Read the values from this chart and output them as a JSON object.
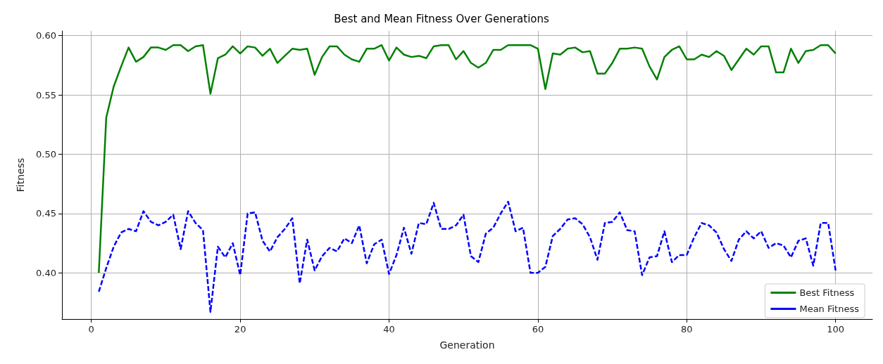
{
  "chart_data": {
    "type": "line",
    "title": "Best and Mean Fitness Over Generations",
    "xlabel": "Generation",
    "ylabel": "Fitness",
    "x": [
      1,
      2,
      3,
      4,
      5,
      6,
      7,
      8,
      9,
      10,
      11,
      12,
      13,
      14,
      15,
      16,
      17,
      18,
      19,
      20,
      21,
      22,
      23,
      24,
      25,
      26,
      27,
      28,
      29,
      30,
      31,
      32,
      33,
      34,
      35,
      36,
      37,
      38,
      39,
      40,
      41,
      42,
      43,
      44,
      45,
      46,
      47,
      48,
      49,
      50,
      51,
      52,
      53,
      54,
      55,
      56,
      57,
      58,
      59,
      60,
      61,
      62,
      63,
      64,
      65,
      66,
      67,
      68,
      69,
      70,
      71,
      72,
      73,
      74,
      75,
      76,
      77,
      78,
      79,
      80,
      81,
      82,
      83,
      84,
      85,
      86,
      87,
      88,
      89,
      90,
      91,
      92,
      93,
      94,
      95,
      96,
      97,
      98,
      99,
      100
    ],
    "series": [
      {
        "name": "Best Fitness",
        "color": "#008000",
        "line_style": "solid",
        "values": [
          0.4,
          0.531,
          0.557,
          0.574,
          0.59,
          0.578,
          0.582,
          0.59,
          0.59,
          0.588,
          0.592,
          0.592,
          0.587,
          0.591,
          0.592,
          0.551,
          0.581,
          0.584,
          0.591,
          0.585,
          0.591,
          0.59,
          0.583,
          0.589,
          0.577,
          0.583,
          0.589,
          0.588,
          0.589,
          0.567,
          0.582,
          0.591,
          0.591,
          0.584,
          0.58,
          0.578,
          0.589,
          0.589,
          0.592,
          0.579,
          0.59,
          0.584,
          0.582,
          0.583,
          0.581,
          0.591,
          0.592,
          0.592,
          0.58,
          0.587,
          0.577,
          0.573,
          0.577,
          0.588,
          0.588,
          0.592,
          0.592,
          0.592,
          0.592,
          0.589,
          0.555,
          0.585,
          0.584,
          0.589,
          0.59,
          0.586,
          0.587,
          0.568,
          0.568,
          0.577,
          0.589,
          0.589,
          0.59,
          0.589,
          0.574,
          0.563,
          0.582,
          0.588,
          0.591,
          0.58,
          0.58,
          0.584,
          0.582,
          0.587,
          0.583,
          0.571,
          0.58,
          0.589,
          0.584,
          0.591,
          0.591,
          0.569,
          0.569,
          0.589,
          0.577,
          0.587,
          0.588,
          0.592,
          0.592,
          0.585
        ]
      },
      {
        "name": "Mean Fitness",
        "color": "#0000ff",
        "line_style": "dashed",
        "values": [
          0.384,
          0.404,
          0.422,
          0.434,
          0.437,
          0.435,
          0.452,
          0.443,
          0.44,
          0.443,
          0.449,
          0.42,
          0.452,
          0.442,
          0.436,
          0.367,
          0.422,
          0.413,
          0.425,
          0.398,
          0.45,
          0.451,
          0.427,
          0.418,
          0.43,
          0.437,
          0.446,
          0.391,
          0.428,
          0.402,
          0.414,
          0.421,
          0.418,
          0.429,
          0.425,
          0.44,
          0.408,
          0.424,
          0.428,
          0.399,
          0.415,
          0.438,
          0.416,
          0.442,
          0.441,
          0.459,
          0.437,
          0.437,
          0.44,
          0.449,
          0.414,
          0.409,
          0.433,
          0.438,
          0.45,
          0.46,
          0.435,
          0.438,
          0.4,
          0.4,
          0.405,
          0.431,
          0.437,
          0.445,
          0.446,
          0.441,
          0.43,
          0.411,
          0.442,
          0.443,
          0.451,
          0.436,
          0.435,
          0.398,
          0.413,
          0.414,
          0.435,
          0.409,
          0.415,
          0.415,
          0.43,
          0.442,
          0.44,
          0.434,
          0.42,
          0.41,
          0.428,
          0.435,
          0.429,
          0.435,
          0.421,
          0.425,
          0.423,
          0.413,
          0.427,
          0.429,
          0.406,
          0.442,
          0.442,
          0.402
        ]
      }
    ],
    "xlim": [
      -3.95,
      104.95
    ],
    "xticks": [
      0,
      20,
      40,
      60,
      80,
      100
    ],
    "ylim": [
      0.361,
      0.604
    ],
    "yticks": [
      {
        "value": 0.4,
        "label": "0.40"
      },
      {
        "value": 0.45,
        "label": "0.45"
      },
      {
        "value": 0.5,
        "label": "0.50"
      },
      {
        "value": 0.55,
        "label": "0.55"
      },
      {
        "value": 0.6,
        "label": "0.60"
      }
    ],
    "grid": true,
    "legend": "bottom right",
    "marker": "none"
  }
}
